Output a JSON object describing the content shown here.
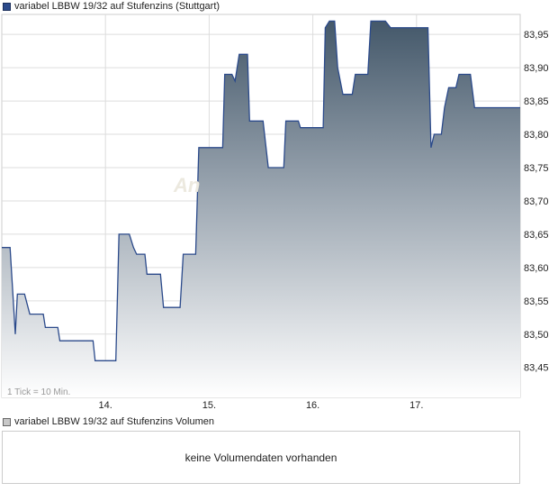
{
  "chart_data": {
    "type": "area",
    "title": "variabel LBBW 19/32 auf Stufenzins (Stuttgart)",
    "watermark": "An",
    "tick_note": "1 Tick = 10 Min.",
    "x_tick_labels": [
      "14.",
      "15.",
      "16.",
      "17."
    ],
    "y_tick_labels": [
      "83,45",
      "83,50",
      "83,55",
      "83,60",
      "83,65",
      "83,70",
      "83,75",
      "83,80",
      "83,85",
      "83,90",
      "83,95"
    ],
    "y_ticks": [
      83.45,
      83.5,
      83.55,
      83.6,
      83.65,
      83.7,
      83.75,
      83.8,
      83.85,
      83.9,
      83.95
    ],
    "ylim": [
      83.405,
      83.98
    ],
    "x_range": [
      0,
      5.0
    ],
    "x_tick_positions": [
      1,
      2,
      3,
      4
    ],
    "grid": true,
    "series": [
      {
        "name": "variabel LBBW 19/32 auf Stufenzins",
        "color": "#2b4a8b",
        "points": [
          [
            0.0,
            83.63
          ],
          [
            0.08,
            83.63
          ],
          [
            0.13,
            83.5
          ],
          [
            0.15,
            83.56
          ],
          [
            0.22,
            83.56
          ],
          [
            0.27,
            83.53
          ],
          [
            0.4,
            83.53
          ],
          [
            0.42,
            83.51
          ],
          [
            0.54,
            83.51
          ],
          [
            0.56,
            83.49
          ],
          [
            0.88,
            83.49
          ],
          [
            0.9,
            83.46
          ],
          [
            1.1,
            83.46
          ],
          [
            1.13,
            83.65
          ],
          [
            1.23,
            83.65
          ],
          [
            1.27,
            83.63
          ],
          [
            1.3,
            83.62
          ],
          [
            1.38,
            83.62
          ],
          [
            1.4,
            83.59
          ],
          [
            1.53,
            83.59
          ],
          [
            1.56,
            83.54
          ],
          [
            1.72,
            83.54
          ],
          [
            1.75,
            83.62
          ],
          [
            1.87,
            83.62
          ],
          [
            1.9,
            83.78
          ],
          [
            2.13,
            83.78
          ],
          [
            2.15,
            83.89
          ],
          [
            2.22,
            83.89
          ],
          [
            2.25,
            83.88
          ],
          [
            2.27,
            83.9
          ],
          [
            2.29,
            83.92
          ],
          [
            2.37,
            83.92
          ],
          [
            2.39,
            83.82
          ],
          [
            2.52,
            83.82
          ],
          [
            2.57,
            83.75
          ],
          [
            2.72,
            83.75
          ],
          [
            2.74,
            83.82
          ],
          [
            2.86,
            83.82
          ],
          [
            2.88,
            83.81
          ],
          [
            3.1,
            83.81
          ],
          [
            3.12,
            83.96
          ],
          [
            3.16,
            83.97
          ],
          [
            3.21,
            83.97
          ],
          [
            3.24,
            83.9
          ],
          [
            3.29,
            83.86
          ],
          [
            3.38,
            83.86
          ],
          [
            3.41,
            83.89
          ],
          [
            3.53,
            83.89
          ],
          [
            3.56,
            83.97
          ],
          [
            3.7,
            83.97
          ],
          [
            3.75,
            83.96
          ],
          [
            4.11,
            83.96
          ],
          [
            4.14,
            83.78
          ],
          [
            4.17,
            83.8
          ],
          [
            4.24,
            83.8
          ],
          [
            4.27,
            83.84
          ],
          [
            4.31,
            83.87
          ],
          [
            4.38,
            83.87
          ],
          [
            4.41,
            83.89
          ],
          [
            4.52,
            83.89
          ],
          [
            4.56,
            83.84
          ],
          [
            5.0,
            83.84
          ]
        ]
      }
    ]
  },
  "volume_panel": {
    "legend": "variabel LBBW 19/32 auf Stufenzins Volumen",
    "message": "keine Volumendaten vorhanden"
  }
}
